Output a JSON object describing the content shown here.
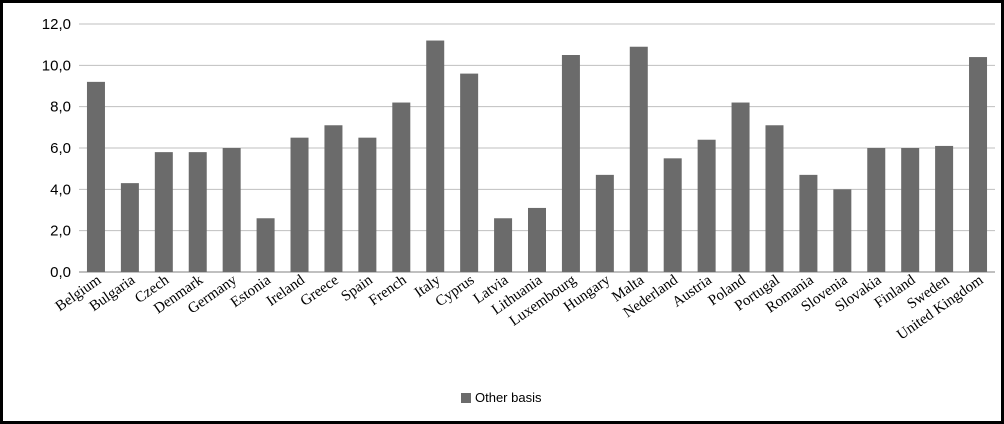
{
  "chart_data": {
    "type": "bar",
    "categories": [
      "Belgium",
      "Bulgaria",
      "Czech",
      "Denmark",
      "Germany",
      "Estonia",
      "Ireland",
      "Greece",
      "Spain",
      "French",
      "Italy",
      "Cyprus",
      "Latvia",
      "Lithuania",
      "Luxembourg",
      "Hungary",
      "Malta",
      "Nederland",
      "Austria",
      "Poland",
      "Portugal",
      "Romania",
      "Slovenia",
      "Slovakia",
      "Finland",
      "Sweden",
      "United Kingdom"
    ],
    "series": [
      {
        "name": "Other basis",
        "values": [
          9.2,
          4.3,
          5.8,
          5.8,
          6.0,
          2.6,
          6.5,
          7.1,
          6.5,
          8.2,
          11.2,
          9.6,
          2.6,
          3.1,
          10.5,
          4.7,
          10.9,
          5.5,
          6.4,
          8.2,
          7.1,
          4.7,
          4.0,
          6.0,
          6.0,
          6.1,
          10.4
        ]
      }
    ],
    "y_ticks": [
      "0,0",
      "2,0",
      "4,0",
      "6,0",
      "8,0",
      "10,0",
      "12,0"
    ],
    "ylim": [
      0,
      12
    ],
    "grid": true,
    "legend_position": "bottom",
    "colors": {
      "bar": "#6b6b6b",
      "grid": "#bfbfbf",
      "axis": "#808080"
    }
  }
}
